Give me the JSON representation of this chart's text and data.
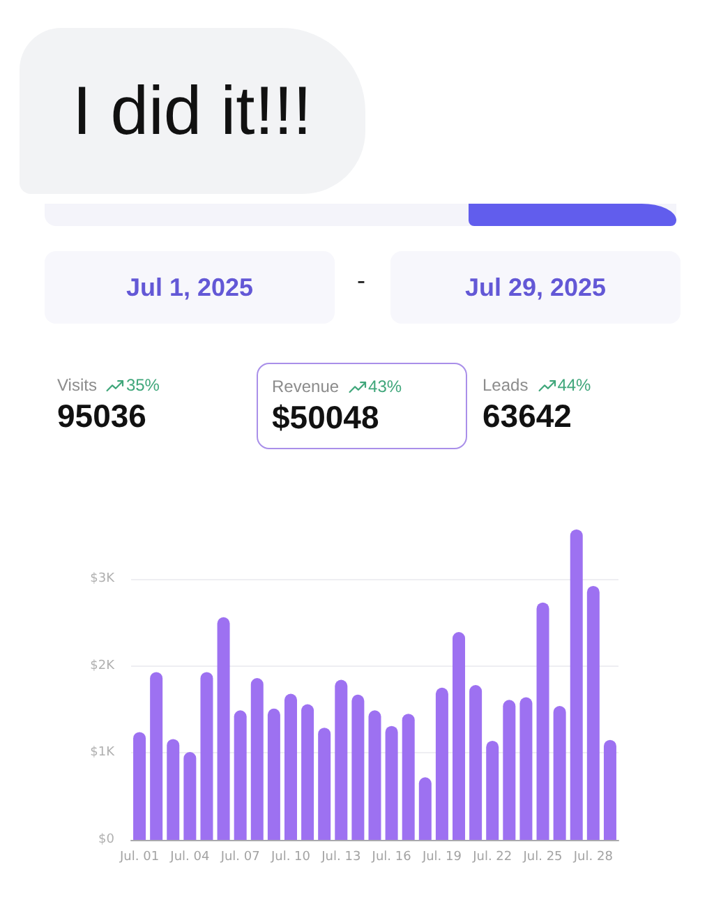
{
  "chart_data": {
    "type": "bar",
    "annotations": [
      "I did it!!!",
      "Jul 1, 2025",
      "-",
      "Jul 29, 2025",
      "Visits",
      "35%",
      "95036",
      "Revenue",
      "43%",
      "$50048",
      "Leads",
      "44%",
      "63642"
    ],
    "categories": [
      "Jul. 01",
      null,
      null,
      "Jul. 04",
      null,
      null,
      "Jul. 07",
      null,
      null,
      "Jul. 10",
      null,
      null,
      "Jul. 13",
      null,
      null,
      "Jul. 16",
      null,
      null,
      "Jul. 19",
      null,
      null,
      "Jul. 22",
      null,
      null,
      "Jul. 25",
      null,
      null,
      "Jul. 28",
      null
    ],
    "values": [
      1240,
      1930,
      1160,
      1010,
      1930,
      2560,
      1490,
      1860,
      1510,
      1680,
      1560,
      1290,
      1840,
      1670,
      1490,
      1310,
      1450,
      720,
      1750,
      2390,
      1780,
      1140,
      1610,
      1640,
      2730,
      1540,
      3570,
      2920,
      1150
    ],
    "color": "#9d71f1",
    "ylim": [
      0,
      3600
    ],
    "yticks": [
      {
        "value": 0,
        "label": "$0"
      },
      {
        "value": 1000,
        "label": "$1K"
      },
      {
        "value": 2000,
        "label": "$2K"
      },
      {
        "value": 3000,
        "label": "$3K"
      }
    ],
    "grid": "y"
  }
}
